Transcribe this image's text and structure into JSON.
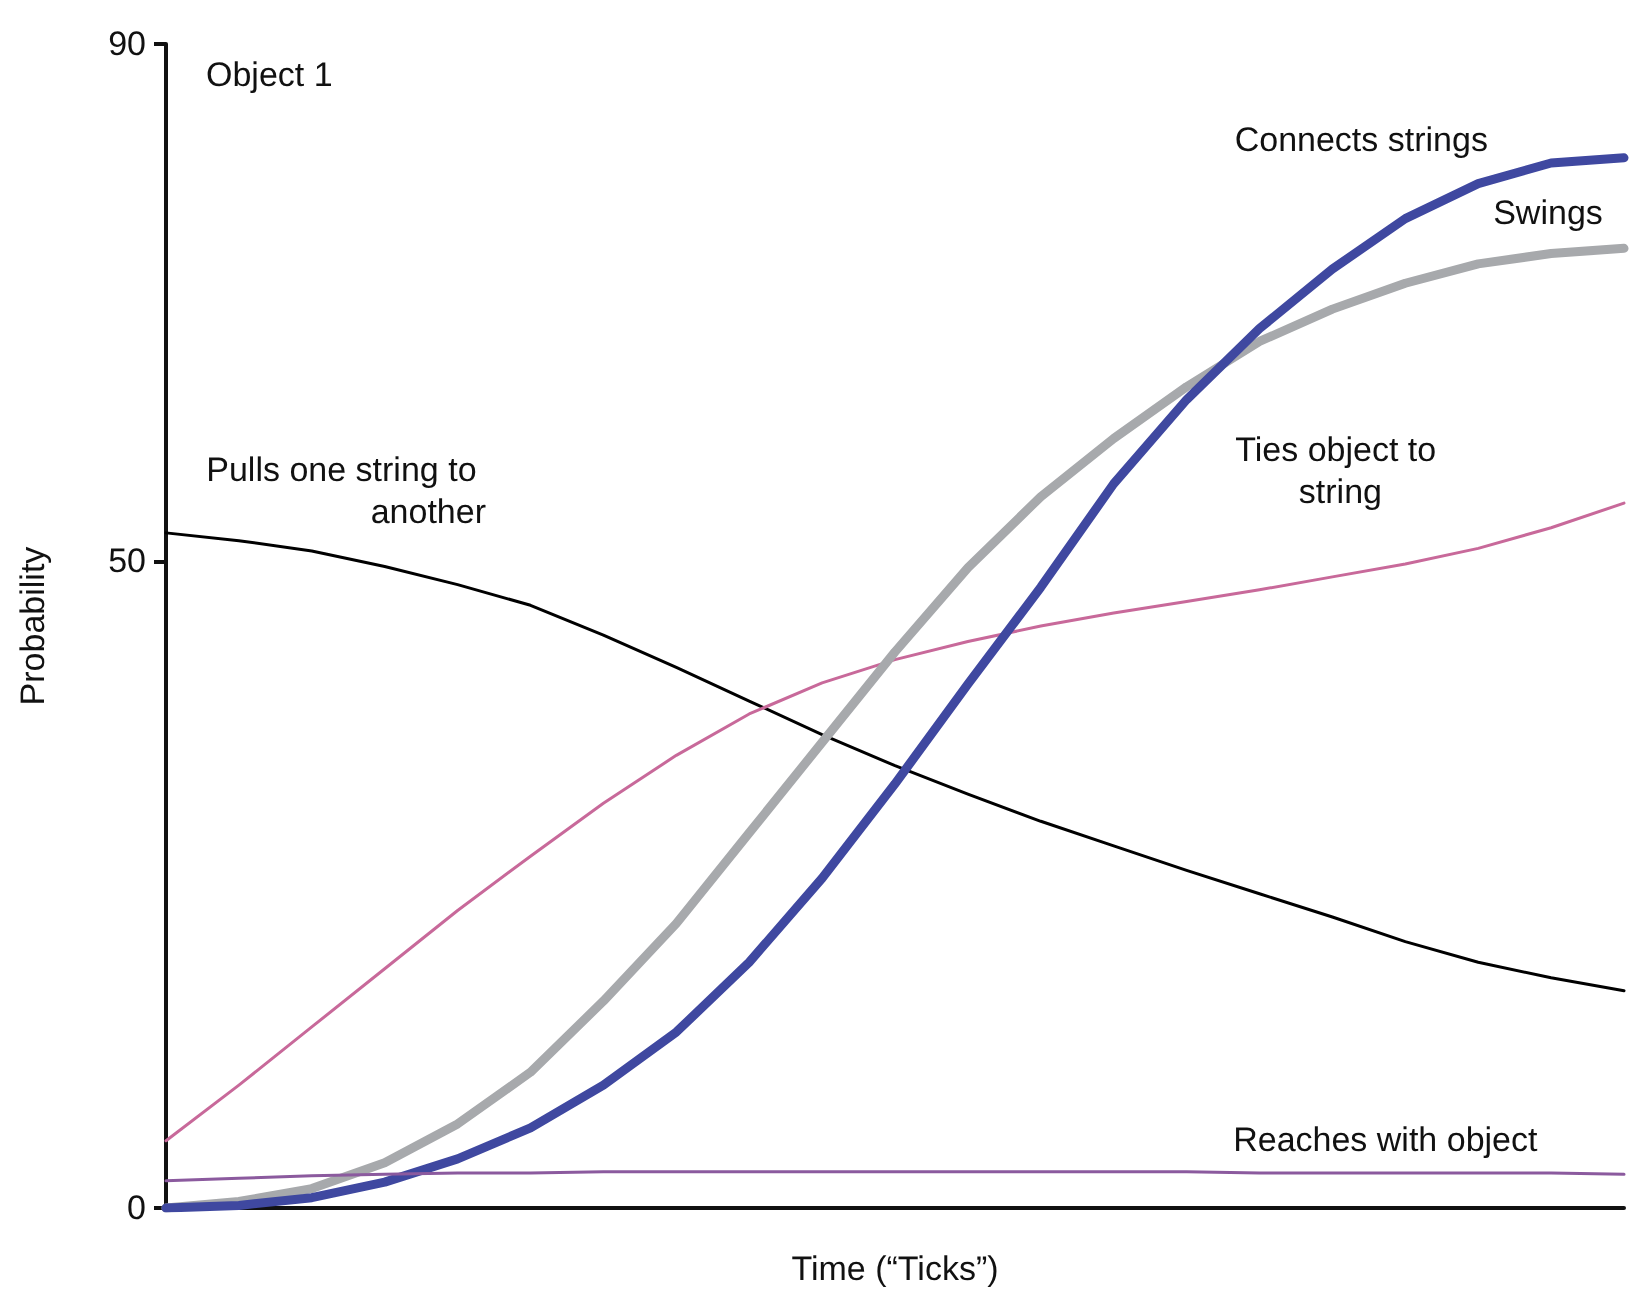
{
  "chart_data": {
    "type": "line",
    "title": "Object 1",
    "xlabel": "Time (“Ticks”)",
    "ylabel": "Probability",
    "categories": [
      null,
      null,
      null,
      null,
      null,
      null,
      null,
      null,
      null,
      null,
      null,
      null,
      null,
      null,
      null,
      null,
      null,
      null,
      null,
      null,
      null
    ],
    "ylim": [
      0,
      90
    ],
    "yticks": [
      0,
      50,
      90
    ],
    "grid": false,
    "tick_labels": "y",
    "marker": "none",
    "line_style": "solid",
    "series": [
      {
        "name": "Pulls one string to another",
        "color": "#000000",
        "values": [
          52.2,
          51.6,
          50.8,
          49.6,
          48.2,
          46.6,
          44.3,
          41.8,
          39.2,
          36.6,
          34.2,
          32,
          29.9,
          28,
          26.1,
          24.3,
          22.5,
          20.6,
          19,
          17.8,
          16.8
        ]
      },
      {
        "name": "Ties object to string",
        "color": "#c8699a",
        "values": [
          5.2,
          9.5,
          14,
          18.5,
          23,
          27.2,
          31.3,
          35,
          38.2,
          40.6,
          42.4,
          43.8,
          45,
          46,
          46.9,
          47.8,
          48.8,
          49.8,
          51,
          52.6,
          54.5
        ]
      },
      {
        "name": "Swings",
        "color": "#a7a9ac",
        "values": [
          0,
          0.5,
          1.5,
          3.5,
          6.5,
          10.5,
          16,
          22,
          29,
          36,
          43,
          49.5,
          55,
          59.5,
          63.5,
          67,
          69.5,
          71.5,
          73,
          73.8,
          74.2
        ]
      },
      {
        "name": "Connects strings",
        "color": "#3f48a0",
        "values": [
          0,
          0.2,
          0.8,
          2,
          3.8,
          6.2,
          9.5,
          13.6,
          19,
          25.5,
          32.8,
          40.5,
          48,
          56,
          62.5,
          68,
          72.6,
          76.5,
          79.2,
          80.8,
          81.2
        ]
      },
      {
        "name": "Reaches with object",
        "color": "#8b5a9e",
        "values": [
          2.1,
          2.3,
          2.5,
          2.6,
          2.7,
          2.7,
          2.8,
          2.8,
          2.8,
          2.8,
          2.8,
          2.8,
          2.8,
          2.8,
          2.8,
          2.7,
          2.7,
          2.7,
          2.7,
          2.7,
          2.6
        ]
      }
    ]
  }
}
